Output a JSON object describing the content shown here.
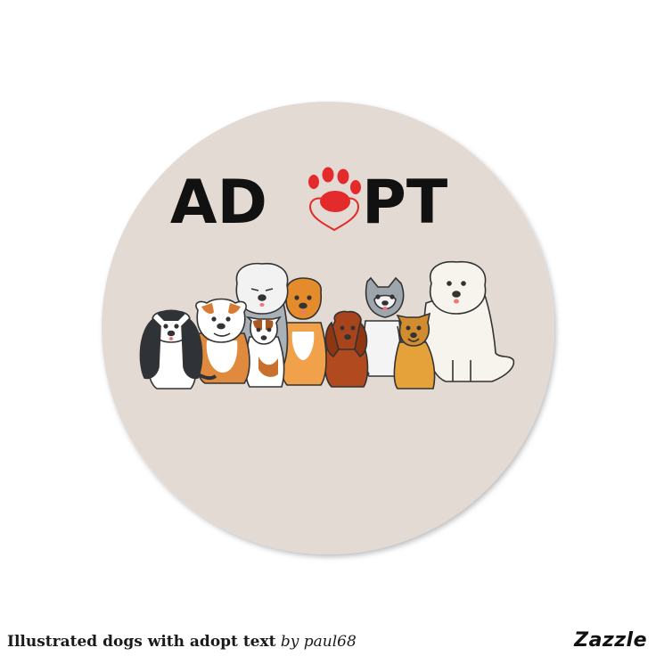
{
  "sticker": {
    "word_left": "AD",
    "word_right": "PT",
    "background_color": "#e3dad3",
    "accent_color": "#e32b2b",
    "text_color": "#111111"
  },
  "caption": {
    "title": "Illustrated dogs with adopt text",
    "by": "by paul68"
  },
  "brand": {
    "name": "Zazzle"
  }
}
